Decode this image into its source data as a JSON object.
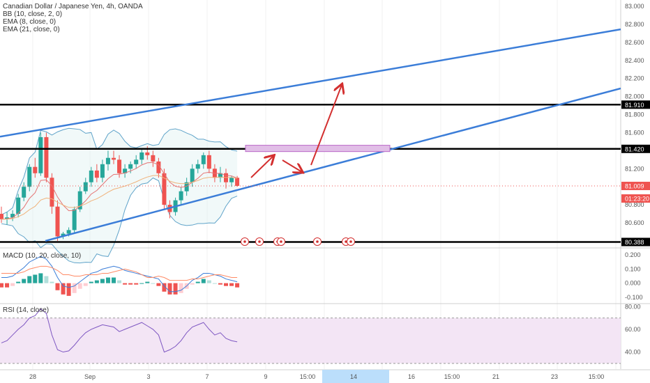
{
  "colors": {
    "up": "#26a69a",
    "down": "#ef5350",
    "bb": "#5fa3c9",
    "ema_fast": "#e57373",
    "ema_slow": "#f0b27a",
    "trend": "#3b7dd8",
    "level": "#000000",
    "arrow": "#d32f2f",
    "zone": "#e1bee7",
    "rsi_bg": "#f3e5f5",
    "rsi_line": "#7e57c2",
    "macd_line": "#3b7dd8",
    "signal_line": "#ff8a65",
    "axis_text": "#555555",
    "label_bg": "#000000",
    "last_price_bg": "#ef5350"
  },
  "header": {
    "title": "Canadian Dollar / Japanese Yen, 4h, OANDA",
    "indicators": [
      "BB (10, close, 2, 0)",
      "EMA (8, close, 0)",
      "EMA (21, close, 0)"
    ]
  },
  "macd_legend": "MACD (10, 20, close, 10)",
  "rsi_legend": "RSI (14, close)",
  "chart_data": [
    {
      "type": "candlestick",
      "title": "Canadian Dollar / Japanese Yen, 4h, OANDA",
      "ylim": [
        80.33,
        83.07
      ],
      "y_ticks": [
        "83.000",
        "82.800",
        "82.600",
        "82.400",
        "82.200",
        "82.000",
        "81.800",
        "81.600",
        "81.420",
        "81.200",
        "81.009",
        "80.800",
        "80.600",
        "80.388"
      ],
      "price_labels": [
        {
          "text": "81.910",
          "value": 81.91,
          "kind": "level"
        },
        {
          "text": "81.420",
          "value": 81.42,
          "kind": "level"
        },
        {
          "text": "81.009",
          "value": 81.009,
          "kind": "last"
        },
        {
          "text": "01:23:20",
          "value": 80.87,
          "kind": "countdown"
        },
        {
          "text": "80.388",
          "value": 80.388,
          "kind": "level"
        }
      ],
      "x_tick_labels": [
        "28",
        "Sep",
        "3",
        "7",
        "9",
        "15:00",
        "14",
        "16",
        "15:00",
        "21",
        "23",
        "15:00"
      ],
      "highlighted_x_tick": "14",
      "horizontal_levels": [
        81.91,
        81.42,
        80.388
      ],
      "last_price": 81.009,
      "countdown": "01:23:20",
      "ohlc": [
        [
          80.7,
          80.78,
          80.6,
          80.64
        ],
        [
          80.64,
          80.72,
          80.58,
          80.66
        ],
        [
          80.66,
          80.74,
          80.62,
          80.7
        ],
        [
          80.7,
          80.92,
          80.66,
          80.88
        ],
        [
          80.88,
          81.05,
          80.84,
          81.0
        ],
        [
          81.0,
          81.25,
          80.95,
          81.22
        ],
        [
          81.22,
          81.32,
          81.1,
          81.15
        ],
        [
          81.15,
          81.6,
          81.12,
          81.55
        ],
        [
          81.55,
          81.6,
          81.05,
          81.1
        ],
        [
          81.1,
          81.15,
          80.7,
          80.78
        ],
        [
          80.78,
          80.85,
          80.4,
          80.45
        ],
        [
          80.45,
          80.5,
          80.42,
          80.48
        ],
        [
          80.48,
          80.55,
          80.45,
          80.52
        ],
        [
          80.52,
          80.78,
          80.48,
          80.75
        ],
        [
          80.75,
          81.0,
          80.72,
          80.95
        ],
        [
          80.95,
          81.1,
          80.92,
          81.05
        ],
        [
          81.05,
          81.22,
          81.0,
          81.18
        ],
        [
          81.18,
          81.25,
          81.05,
          81.1
        ],
        [
          81.1,
          81.3,
          81.05,
          81.25
        ],
        [
          81.25,
          81.4,
          81.18,
          81.32
        ],
        [
          81.32,
          81.4,
          81.25,
          81.3
        ],
        [
          81.3,
          81.35,
          81.1,
          81.15
        ],
        [
          81.15,
          81.25,
          81.1,
          81.2
        ],
        [
          81.2,
          81.28,
          81.15,
          81.25
        ],
        [
          81.25,
          81.35,
          81.2,
          81.3
        ],
        [
          81.3,
          81.42,
          81.25,
          81.38
        ],
        [
          81.38,
          81.45,
          81.3,
          81.35
        ],
        [
          81.35,
          81.4,
          81.22,
          81.28
        ],
        [
          81.28,
          81.32,
          81.1,
          81.15
        ],
        [
          81.15,
          81.2,
          80.75,
          80.8
        ],
        [
          80.8,
          80.85,
          80.65,
          80.72
        ],
        [
          80.72,
          80.88,
          80.68,
          80.85
        ],
        [
          80.85,
          81.0,
          80.8,
          80.95
        ],
        [
          80.95,
          81.1,
          80.9,
          81.05
        ],
        [
          81.05,
          81.25,
          81.0,
          81.2
        ],
        [
          81.2,
          81.3,
          81.15,
          81.25
        ],
        [
          81.25,
          81.38,
          81.2,
          81.35
        ],
        [
          81.35,
          81.4,
          81.15,
          81.2
        ],
        [
          81.2,
          81.25,
          81.05,
          81.1
        ],
        [
          81.1,
          81.22,
          81.05,
          81.15
        ],
        [
          81.15,
          81.2,
          80.98,
          81.05
        ],
        [
          81.05,
          81.12,
          81.0,
          81.1
        ],
        [
          81.1,
          81.12,
          81.0,
          81.01
        ]
      ],
      "zone": {
        "x_from": "9",
        "x_to": "15:00",
        "low": 81.39,
        "high": 81.46
      }
    },
    {
      "type": "bar",
      "title": "MACD (10, 20, close, 10)",
      "ylim": [
        -0.14,
        0.24
      ],
      "y_ticks": [
        "0.200",
        "0.100",
        "0.000",
        "-0.100"
      ],
      "histogram": [
        -0.03,
        -0.03,
        -0.02,
        0.01,
        0.03,
        0.05,
        0.06,
        0.07,
        0.05,
        0.01,
        -0.05,
        -0.08,
        -0.09,
        -0.07,
        -0.04,
        -0.02,
        0.01,
        0.02,
        0.03,
        0.04,
        0.04,
        0.02,
        -0.01,
        -0.01,
        -0.01,
        0.0,
        0.01,
        0.0,
        -0.02,
        -0.06,
        -0.08,
        -0.08,
        -0.07,
        -0.04,
        -0.01,
        0.01,
        0.03,
        0.02,
        0.0,
        -0.01,
        -0.02,
        -0.02,
        -0.03
      ],
      "series": [
        {
          "name": "MACD",
          "values": [
            0.04,
            0.04,
            0.05,
            0.08,
            0.11,
            0.15,
            0.17,
            0.19,
            0.17,
            0.12,
            0.04,
            -0.02,
            -0.03,
            -0.02,
            0.01,
            0.04,
            0.07,
            0.08,
            0.1,
            0.11,
            0.12,
            0.11,
            0.09,
            0.08,
            0.07,
            0.06,
            0.05,
            0.04,
            0.03,
            -0.02,
            -0.06,
            -0.06,
            -0.05,
            -0.02,
            0.02,
            0.04,
            0.07,
            0.07,
            0.06,
            0.05,
            0.03,
            0.02,
            0.01
          ]
        },
        {
          "name": "Signal",
          "values": [
            0.07,
            0.07,
            0.07,
            0.07,
            0.08,
            0.1,
            0.11,
            0.12,
            0.12,
            0.11,
            0.09,
            0.06,
            0.06,
            0.05,
            0.05,
            0.06,
            0.06,
            0.06,
            0.07,
            0.07,
            0.08,
            0.09,
            0.1,
            0.09,
            0.08,
            0.06,
            0.04,
            0.04,
            0.05,
            0.04,
            0.02,
            0.02,
            0.02,
            0.02,
            0.03,
            0.03,
            0.04,
            0.05,
            0.06,
            0.06,
            0.05,
            0.04,
            0.04
          ]
        }
      ]
    },
    {
      "type": "line",
      "title": "RSI (14, close)",
      "ylim": [
        25,
        82
      ],
      "y_ticks": [
        "80.00",
        "60.00",
        "40.00"
      ],
      "band": [
        30,
        70
      ],
      "series": [
        {
          "name": "RSI",
          "values": [
            48,
            50,
            55,
            60,
            64,
            70,
            72,
            78,
            74,
            55,
            42,
            40,
            41,
            46,
            52,
            57,
            60,
            62,
            64,
            63,
            62,
            58,
            60,
            62,
            64,
            66,
            63,
            60,
            55,
            40,
            42,
            45,
            50,
            57,
            62,
            64,
            66,
            60,
            55,
            57,
            52,
            50,
            49
          ]
        }
      ]
    }
  ]
}
